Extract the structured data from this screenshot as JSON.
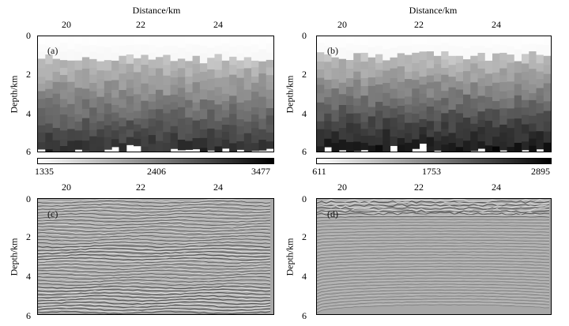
{
  "panels": [
    {
      "id": "a",
      "label": "(a)",
      "xlabel": "Distance/km",
      "ylabel": "Depth/km",
      "xticks": [
        "20",
        "22",
        "24"
      ],
      "yticks": [
        "0",
        "2",
        "4",
        "6"
      ],
      "kind": "velocity",
      "colorbar": {
        "min": "1335",
        "mid": "2406",
        "max": "3477"
      }
    },
    {
      "id": "b",
      "label": "(b)",
      "xlabel": "Distance/km",
      "ylabel": "Depth/km",
      "xticks": [
        "20",
        "22",
        "24"
      ],
      "yticks": [
        "0",
        "2",
        "4",
        "6"
      ],
      "kind": "velocity",
      "colorbar": {
        "min": "611",
        "mid": "1753",
        "max": "2895"
      }
    },
    {
      "id": "c",
      "label": "(c)",
      "ylabel": "Depth/km",
      "xticks": [
        "20",
        "22",
        "24"
      ],
      "yticks": [
        "0",
        "2",
        "4",
        "6"
      ],
      "kind": "seismic"
    },
    {
      "id": "d",
      "label": "(d)",
      "ylabel": "Depth/km",
      "xticks": [
        "20",
        "22",
        "24"
      ],
      "yticks": [
        "0",
        "2",
        "4",
        "6"
      ],
      "kind": "seismic"
    }
  ],
  "colors": {
    "cbar_light": "#ffffff",
    "cbar_dark": "#000000"
  }
}
